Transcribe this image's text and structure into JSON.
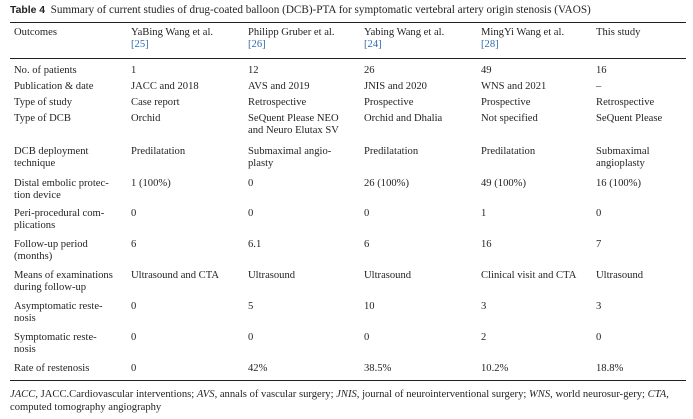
{
  "caption": {
    "label": "Table 4",
    "text": "Summary of current studies of drug-coated balloon (DCB)-PTA for symptomatic vertebral artery origin stenosis (VAOS)"
  },
  "columns": [
    {
      "name": "Outcomes",
      "ref": ""
    },
    {
      "name": "YaBing Wang et al.",
      "ref": "[25]"
    },
    {
      "name": "Philipp Gruber et al.",
      "ref": "[26]"
    },
    {
      "name": "Yabing Wang et al.",
      "ref": "[24]"
    },
    {
      "name": "MingYi Wang et al.",
      "ref": "[28]"
    },
    {
      "name": "This study",
      "ref": ""
    }
  ],
  "rows": [
    {
      "label": "No. of patients",
      "values": [
        "1",
        "12",
        "26",
        "49",
        "16"
      ]
    },
    {
      "label": "Publication & date",
      "values": [
        "JACC and 2018",
        "AVS and 2019",
        "JNIS and 2020",
        "WNS and 2021",
        "–"
      ]
    },
    {
      "label": "Type of study",
      "values": [
        "Case report",
        "Retrospective",
        "Prospective",
        "Prospective",
        "Retrospective"
      ]
    },
    {
      "label": "Type of DCB",
      "values": [
        "Orchid",
        "SeQuent Please NEO\nand Neuro Elutax SV",
        "Orchid and Dhalia",
        "Not specified",
        "SeQuent Please"
      ]
    },
    {
      "label": "DCB deployment\ntechnique",
      "values": [
        "Predilatation",
        "Submaximal angio-\nplasty",
        "Predilatation",
        "Predilatation",
        "Submaximal\nangioplasty"
      ]
    },
    {
      "label": "Distal embolic protec-\ntion device",
      "values": [
        "1 (100%)",
        "0",
        "26 (100%)",
        "49 (100%)",
        "16 (100%)"
      ]
    },
    {
      "label": "Peri-procedural com-\nplications",
      "values": [
        "0",
        "0",
        "0",
        "1",
        "0"
      ]
    },
    {
      "label": "Follow-up period\n(months)",
      "values": [
        "6",
        "6.1",
        "6",
        "16",
        "7"
      ]
    },
    {
      "label": "Means of examinations\nduring follow-up",
      "values": [
        "Ultrasound and CTA",
        "Ultrasound",
        "Ultrasound",
        "Clinical visit and CTA",
        "Ultrasound"
      ]
    },
    {
      "label": "Asymptomatic reste-\nnosis",
      "values": [
        "0",
        "5",
        "10",
        "3",
        "3"
      ]
    },
    {
      "label": "Symptomatic reste-\nnosis",
      "values": [
        "0",
        "0",
        "0",
        "2",
        "0"
      ]
    },
    {
      "label": "Rate of restenosis",
      "values": [
        "0",
        "42%",
        "38.5%",
        "10.2%",
        "18.8%"
      ]
    }
  ],
  "footnote": [
    {
      "abbr": "JACC",
      "text": ", JACC.Cardiovascular interventions; "
    },
    {
      "abbr": "AVS",
      "text": ", annals of vascular surgery; "
    },
    {
      "abbr": "JNIS",
      "text": ", journal of neurointerventional surgery; "
    },
    {
      "abbr": "WNS",
      "text": ", world neurosur-­gery; "
    },
    {
      "abbr": "CTA",
      "text": ", computed tomography angiography"
    }
  ]
}
